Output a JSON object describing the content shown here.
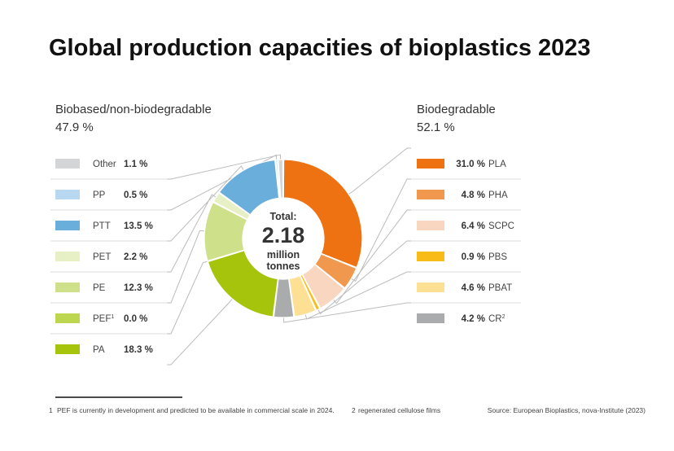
{
  "chart_data": {
    "type": "pie",
    "title": "Global production capacities of bioplastics 2023",
    "center": {
      "line1": "Total:",
      "value": "2.18",
      "line2": "million",
      "line3": "tonnes"
    },
    "groups": [
      {
        "title": "Biobased/non-biodegradable",
        "pct": "47.9 %"
      },
      {
        "title": "Biodegradable",
        "pct": "52.1 %"
      }
    ],
    "slices": [
      {
        "label": "PLA",
        "value": 31.0,
        "value_text": "31.0 %",
        "color": "#ee7212",
        "group": 1
      },
      {
        "label": "PHA",
        "value": 4.8,
        "value_text": "4.8 %",
        "color": "#f0994e",
        "group": 1
      },
      {
        "label": "SCPC",
        "value": 6.4,
        "value_text": "6.4 %",
        "color": "#f9d6c0",
        "group": 1
      },
      {
        "label": "PBS",
        "value": 0.9,
        "value_text": "0.9 %",
        "color": "#f8bb17",
        "group": 1
      },
      {
        "label": "PBAT",
        "value": 4.6,
        "value_text": "4.6 %",
        "color": "#fde093",
        "group": 1
      },
      {
        "label": "CR",
        "sup": "2",
        "value": 4.2,
        "value_text": "4.2 %",
        "color": "#a9abad",
        "group": 1
      },
      {
        "label": "PA",
        "value": 18.3,
        "value_text": "18.3 %",
        "color": "#a6c40b",
        "group": 0
      },
      {
        "label": "PEF",
        "sup": "1",
        "value": 0.0,
        "value_text": "0.0 %",
        "color": "#bdd64f",
        "group": 0
      },
      {
        "label": "PE",
        "value": 12.3,
        "value_text": "12.3 %",
        "color": "#cfe08a",
        "group": 0
      },
      {
        "label": "PET",
        "value": 2.2,
        "value_text": "2.2 %",
        "color": "#e7efc4",
        "group": 0
      },
      {
        "label": "PTT",
        "value": 13.5,
        "value_text": "13.5 %",
        "color": "#6aaedc",
        "group": 0
      },
      {
        "label": "PP",
        "value": 0.5,
        "value_text": "0.5 %",
        "color": "#b8d8f1",
        "group": 0
      },
      {
        "label": "Other",
        "value": 1.1,
        "value_text": "1.1 %",
        "color": "#d3d5d6",
        "group": 0
      }
    ]
  },
  "footnotes": {
    "note1_mark": "1",
    "note1": "PEF is currently in development and predicted to be available in commercial scale in 2024.",
    "note2_mark": "2",
    "note2": "regenerated cellulose films",
    "source": "Source: European Bioplastics, nova-Institute (2023)"
  }
}
